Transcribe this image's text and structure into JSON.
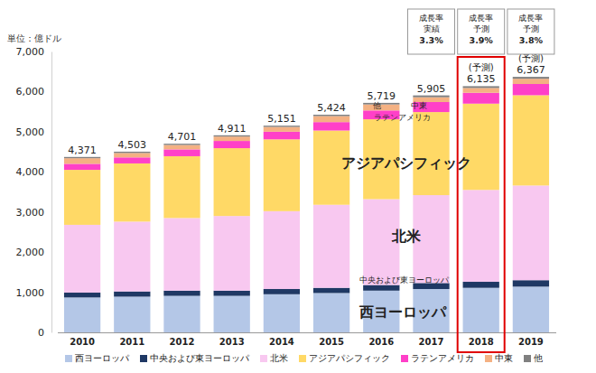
{
  "chart_data": {
    "type": "bar",
    "stacked": true,
    "grid": false,
    "legend": "bottom",
    "unit_label": "単位：億ドル",
    "categories": [
      "2010",
      "2011",
      "2012",
      "2013",
      "2014",
      "2015",
      "2016",
      "2017",
      "2018",
      "2019"
    ],
    "ylim": [
      0,
      7000
    ],
    "yticks": [
      0,
      {
        "value": 1000,
        "label": "1,000"
      },
      {
        "value": 2000,
        "label": "2,000"
      },
      {
        "value": 3000,
        "label": "3,000"
      },
      {
        "value": 4000,
        "label": "4,000"
      },
      {
        "value": 5000,
        "label": "5,000"
      },
      {
        "value": 6000,
        "label": "6,000"
      },
      {
        "value": 7000,
        "label": "7,000"
      }
    ],
    "series": [
      {
        "name": "西ヨーロッパ",
        "color": "#b4c7e7",
        "values": [
          870,
          890,
          910,
          910,
          950,
          980,
          1040,
          1080,
          1110,
          1140
        ]
      },
      {
        "name": "中央および東ヨーロッパ",
        "color": "#1f3864",
        "values": [
          120,
          130,
          130,
          130,
          130,
          130,
          140,
          150,
          150,
          160
        ]
      },
      {
        "name": "北米",
        "color": "#f8c8f0",
        "values": [
          1690,
          1740,
          1810,
          1860,
          1940,
          2070,
          2140,
          2190,
          2290,
          2360
        ]
      },
      {
        "name": "アジアパシフィック",
        "color": "#ffd966",
        "values": [
          1370,
          1450,
          1540,
          1690,
          1790,
          1850,
          1990,
          2070,
          2150,
          2250
        ]
      },
      {
        "name": "ラテンアメリカ",
        "color": "#ff40c8",
        "values": [
          150,
          150,
          170,
          180,
          190,
          210,
          220,
          250,
          270,
          280
        ]
      },
      {
        "name": "中東",
        "color": "#f4b183",
        "values": [
          140,
          110,
          110,
          110,
          120,
          150,
          150,
          120,
          120,
          130
        ]
      },
      {
        "name": "他",
        "color": "#808080",
        "values": [
          31,
          33,
          31,
          31,
          31,
          34,
          39,
          45,
          45,
          47
        ]
      }
    ],
    "totals": [
      4371,
      4503,
      4701,
      4911,
      5151,
      5424,
      5719,
      5905,
      6135,
      6367
    ],
    "total_labels": [
      "4,371",
      "4,503",
      "4,701",
      "4,911",
      "5,151",
      "5,424",
      "5,719",
      "5,905",
      "6,135",
      "6,367"
    ],
    "total_notes": [
      null,
      null,
      null,
      null,
      null,
      null,
      null,
      null,
      "(予測)",
      "(予測)"
    ],
    "growth_rates": [
      {
        "category": "2017",
        "lines": [
          "成長率",
          "実績"
        ],
        "label": "3.3%"
      },
      {
        "category": "2018",
        "lines": [
          "成長率",
          "予測"
        ],
        "label": "3.9%"
      },
      {
        "category": "2019",
        "lines": [
          "成長率",
          "予測"
        ],
        "label": "3.8%"
      }
    ],
    "highlight": "2018"
  }
}
